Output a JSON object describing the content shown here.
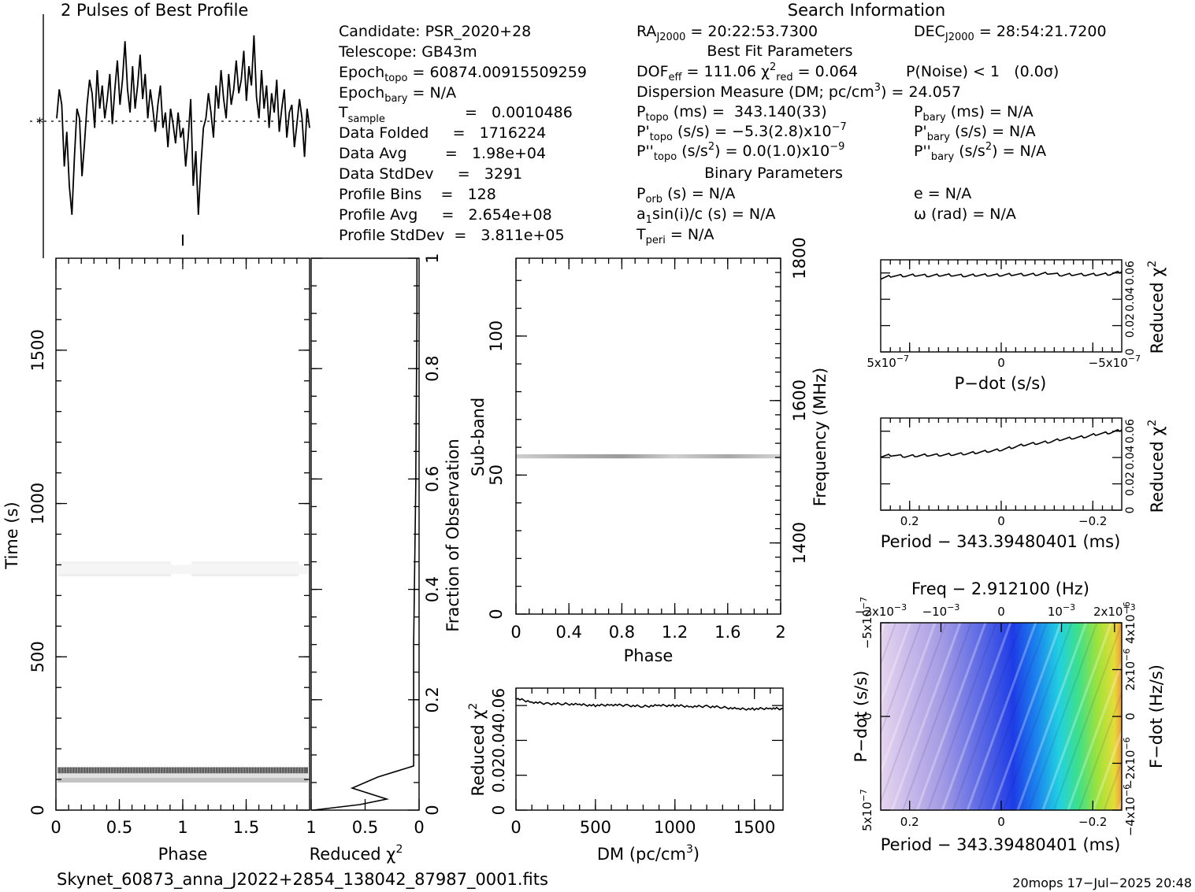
{
  "header": {
    "profile_title": "2 Pulses of Best Profile",
    "search_title": "Search Information",
    "best_fit_title": "Best Fit Parameters",
    "binary_title": "Binary Parameters"
  },
  "info": {
    "candidate": "Candidate:  PSR_2020+28",
    "telescope": "Telescope:  GB43m",
    "epoch_topo": "= 60874.00915509259",
    "epoch_bary": "= N/A",
    "t_sample": "=   0.0010486",
    "data_folded": "Data Folded     =   1716224",
    "data_avg": "Data Avg        =   1.98e+04",
    "data_stddev": "Data StdDev     =   3291",
    "profile_bins": "Profile Bins    =   128",
    "profile_avg": "Profile Avg     =   2.654e+08",
    "profile_stddev": "Profile StdDev  =   3.811e+05",
    "ra": "= 20:22:53.7300",
    "dec": "= 28:54:21.7200",
    "dof": "DOF",
    "dof_val": "= 111.06",
    "chi_red": "= 0.064",
    "p_noise": "P(Noise) < 1   (0.0σ)",
    "dm": "Dispersion Measure (DM; pc/cm",
    "dm_val": ") = 24.057",
    "p_topo": "(ms) =  343.140(33)",
    "pd_topo": "(s/s) = −5.3(2.8)x10",
    "pdd_topo": "(s/s",
    "pdd_topo_val": ") = 0.0(1.0)x10",
    "p_bary": "(ms) = N/A",
    "pd_bary": "(s/s) = N/A",
    "pdd_bary": "(s/s",
    "pdd_bary_val": ") = N/A",
    "p_orb": "(s) = N/A",
    "a1sini": "sin(i)/c (s) = N/A",
    "t_peri": "= N/A",
    "ecc": "e = N/A",
    "omega": "ω (rad) = N/A"
  },
  "footer": {
    "filename": "Skynet_60873_anna_J2022+2854_138042_87987_0001.fits",
    "stamp": "20mops 17−Jul−2025 20:48"
  },
  "colors": {
    "line": "#000000",
    "grey": "#9a9a9a",
    "frame": "#000000"
  },
  "chart_data": [
    {
      "type": "line",
      "name": "profile",
      "title": "2 Pulses of Best Profile",
      "x": [
        0,
        0.02,
        0.04,
        0.06,
        0.08,
        0.1,
        0.12,
        0.14,
        0.16,
        0.18,
        0.2,
        0.22,
        0.24,
        0.26,
        0.28,
        0.3,
        0.32,
        0.34,
        0.36,
        0.38,
        0.4,
        0.42,
        0.44,
        0.46,
        0.48,
        0.5,
        0.52,
        0.54,
        0.56,
        0.58,
        0.6,
        0.62,
        0.64,
        0.66,
        0.68,
        0.7,
        0.72,
        0.74,
        0.76,
        0.78,
        0.8,
        0.82,
        0.84,
        0.86,
        0.88,
        0.9,
        0.92,
        0.94,
        0.96,
        0.98,
        1.0,
        1.02,
        1.04,
        1.06,
        1.08,
        1.1,
        1.12,
        1.14,
        1.16,
        1.18,
        1.2,
        1.22,
        1.24,
        1.26,
        1.28,
        1.3,
        1.32,
        1.34,
        1.36,
        1.38,
        1.4,
        1.42,
        1.44,
        1.46,
        1.48,
        1.5,
        1.52,
        1.54,
        1.56,
        1.58,
        1.6,
        1.62,
        1.64,
        1.66,
        1.68,
        1.7,
        1.72,
        1.74,
        1.76,
        1.78,
        1.8,
        1.82,
        1.84,
        1.86,
        1.88,
        1.9,
        1.92,
        1.94,
        1.96,
        1.98,
        2.0
      ],
      "y": [
        0.55,
        0.7,
        0.62,
        0.3,
        0.48,
        0.2,
        0.05,
        0.35,
        0.6,
        0.55,
        0.25,
        0.42,
        0.62,
        0.75,
        0.68,
        0.5,
        0.8,
        0.6,
        0.72,
        0.55,
        0.65,
        0.78,
        0.52,
        0.7,
        0.85,
        0.62,
        0.75,
        0.95,
        0.7,
        0.58,
        0.82,
        0.6,
        0.72,
        0.88,
        0.65,
        0.78,
        0.55,
        0.7,
        0.6,
        0.48,
        0.62,
        0.72,
        0.5,
        0.58,
        0.4,
        0.6,
        0.52,
        0.42,
        0.58,
        0.45,
        0.5,
        0.3,
        0.45,
        0.65,
        0.2,
        0.38,
        0.05,
        0.3,
        0.5,
        0.55,
        0.68,
        0.58,
        0.45,
        0.72,
        0.6,
        0.8,
        0.65,
        0.55,
        0.78,
        0.62,
        0.7,
        0.85,
        0.68,
        0.75,
        0.9,
        0.64,
        0.82,
        0.72,
        0.98,
        0.66,
        0.55,
        0.8,
        0.6,
        0.72,
        0.5,
        0.68,
        0.58,
        0.75,
        0.48,
        0.6,
        0.7,
        0.45,
        0.58,
        0.62,
        0.4,
        0.52,
        0.65,
        0.55,
        0.35,
        0.6,
        0.5
      ],
      "xlim": [
        0,
        2
      ],
      "ylim": [
        0,
        1
      ]
    },
    {
      "type": "heatmap",
      "name": "time-phase",
      "xlabel": "Phase",
      "ylabel": "Time (s)",
      "xlim": [
        0,
        2
      ],
      "ylim": [
        0,
        1800
      ],
      "x_ticks": [
        0,
        0.5,
        1,
        1.5
      ],
      "x_tick_labels": [
        "0",
        "0.5",
        "1",
        "1.5"
      ],
      "y_ticks": [
        0,
        500,
        1000,
        1500
      ],
      "y_tick_labels": [
        "0",
        "500",
        "1000",
        "1500"
      ],
      "bands": [
        {
          "t0": 90,
          "t1": 106,
          "level": 0.3
        },
        {
          "t0": 106,
          "t1": 120,
          "level": 0.15
        },
        {
          "t0": 120,
          "t1": 140,
          "level": 0.8
        },
        {
          "t0": 770,
          "t1": 800,
          "level": 0.05
        }
      ]
    },
    {
      "type": "line",
      "name": "reduced-chi2-time",
      "xlabel": "Reduced χ",
      "ylabel": "Fraction of Observation",
      "xlim": [
        1,
        0
      ],
      "ylim": [
        0,
        1
      ],
      "x_tick_labels": [
        "1",
        "0.5",
        "0"
      ],
      "y_ticks": [
        0,
        0.2,
        0.4,
        0.6,
        0.8,
        1
      ],
      "y_tick_labels": [
        "0",
        "0.2",
        "0.4",
        "0.6",
        "0.8",
        "1"
      ],
      "x": [
        0.98,
        0.55,
        0.3,
        0.62,
        0.38,
        0.05,
        0.05,
        0.03,
        0.03,
        0.02,
        0.02
      ],
      "y": [
        0.0,
        0.01,
        0.02,
        0.04,
        0.06,
        0.08,
        0.3,
        0.6,
        0.62,
        0.9,
        1.0
      ]
    },
    {
      "type": "heatmap",
      "name": "subband-phase",
      "xlabel": "Phase",
      "ylabel": "Sub-band",
      "y2label": "Frequency (MHz)",
      "xlim": [
        0,
        2
      ],
      "ylim": [
        0,
        128
      ],
      "x_ticks": [
        0,
        0.4,
        0.8,
        1.2,
        1.6,
        2
      ],
      "x_tick_labels": [
        "0",
        "0.4",
        "0.8",
        "1.2",
        "1.6",
        "2"
      ],
      "y_ticks": [
        0,
        50,
        100
      ],
      "y_tick_labels": [
        "0",
        "50",
        "100"
      ],
      "y2_ticks": [
        1400,
        1600,
        1800
      ],
      "y2_tick_labels": [
        "1400",
        "1600",
        "1800"
      ],
      "y2lim": [
        1300,
        1800
      ],
      "bright_band": {
        "s0": 56,
        "s1": 57.5
      }
    },
    {
      "type": "line",
      "name": "dm-chi2",
      "xlabel": "DM (pc/cm",
      "ylabel": "Reduced χ",
      "xlim": [
        0,
        1680
      ],
      "ylim": [
        0,
        0.07
      ],
      "x_ticks": [
        0,
        500,
        1000,
        1500
      ],
      "x_tick_labels": [
        "0",
        "500",
        "1000",
        "1500"
      ],
      "y_tick_labels": [
        "0",
        "0.02",
        "0.04",
        "0.06"
      ],
      "x": [
        0,
        100,
        200,
        300,
        400,
        500,
        600,
        700,
        800,
        900,
        1000,
        1100,
        1200,
        1300,
        1400,
        1500,
        1600,
        1680
      ],
      "y": [
        0.064,
        0.062,
        0.061,
        0.061,
        0.0605,
        0.06,
        0.0605,
        0.06,
        0.0595,
        0.06,
        0.06,
        0.0595,
        0.0595,
        0.059,
        0.058,
        0.058,
        0.0585,
        0.058
      ]
    },
    {
      "type": "line",
      "name": "pdot-chi2",
      "xlabel": "P−dot (s/s)",
      "ylabel": "Reduced χ",
      "x_tick_labels": [
        "5x10",
        "0",
        "−5x10"
      ],
      "y_tick_labels": [
        "0",
        "0.02",
        "0.04",
        "0.06"
      ],
      "ylim": [
        0,
        0.07
      ],
      "x": [
        0,
        0.05,
        0.1,
        0.15,
        0.2,
        0.25,
        0.3,
        0.35,
        0.4,
        0.45,
        0.5,
        0.55,
        0.6,
        0.65,
        0.7,
        0.75,
        0.8,
        0.85,
        0.9,
        0.95,
        1.0
      ],
      "y": [
        0.056,
        0.058,
        0.058,
        0.0585,
        0.058,
        0.0585,
        0.0585,
        0.058,
        0.0585,
        0.0585,
        0.0585,
        0.059,
        0.0588,
        0.059,
        0.06,
        0.0585,
        0.059,
        0.0588,
        0.059,
        0.0592,
        0.061
      ]
    },
    {
      "type": "line",
      "name": "period-chi2",
      "xlabel": "Period − 343.39480401 (ms)",
      "ylabel": "Reduced χ",
      "x_tick_labels": [
        "0.2",
        "0",
        "−0.2"
      ],
      "y_tick_labels": [
        "0",
        "0.02",
        "0.04",
        "0.06"
      ],
      "ylim": [
        0,
        0.07
      ],
      "x": [
        0,
        0.05,
        0.1,
        0.15,
        0.2,
        0.25,
        0.3,
        0.35,
        0.4,
        0.45,
        0.5,
        0.55,
        0.6,
        0.65,
        0.7,
        0.75,
        0.8,
        0.85,
        0.9,
        0.95,
        1.0
      ],
      "y": [
        0.041,
        0.042,
        0.041,
        0.0415,
        0.042,
        0.042,
        0.0425,
        0.043,
        0.044,
        0.045,
        0.046,
        0.048,
        0.05,
        0.051,
        0.052,
        0.054,
        0.055,
        0.056,
        0.058,
        0.059,
        0.061
      ]
    },
    {
      "type": "heatmap",
      "name": "period-pdot",
      "title": "Freq − 2.912100 (Hz)",
      "xlabel": "Period − 343.39480401 (ms)",
      "ylabel": "P−dot (s/s)",
      "y2label": "F−dot (Hz/s)",
      "x_tick_labels": [
        "0.2",
        "0",
        "−0.2"
      ],
      "top_tick_labels": [
        "−2x10",
        "−10",
        "0",
        "10",
        "2x10"
      ],
      "y_tick_labels": [
        "5x10",
        "0",
        "−5x10"
      ],
      "y2_tick_labels": [
        "−4x10",
        "−2x10",
        "0",
        "2x10",
        "4x10"
      ],
      "colors": [
        "#e4d2ee",
        "#b9a9e6",
        "#7f7fe0",
        "#3d4fe6",
        "#1f3be8",
        "#1c7ef0",
        "#1fc7e8",
        "#36dfa1",
        "#4ee05e",
        "#9fe43a",
        "#e3e03a",
        "#f0a040"
      ]
    }
  ]
}
